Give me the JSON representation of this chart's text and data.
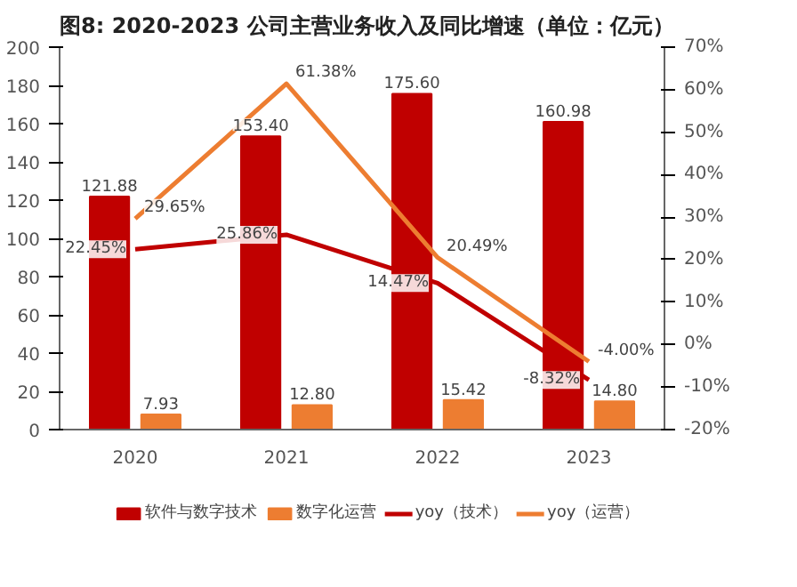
{
  "chart_data": {
    "type": "bar",
    "title": "图8:  2020-2023 公司主营业务收入及同比增速（单位：亿元）",
    "categories": [
      "2020",
      "2021",
      "2022",
      "2023"
    ],
    "series": [
      {
        "name": "软件与数字技术",
        "color": "#c00000",
        "values": [
          121.88,
          153.4,
          175.6,
          160.98
        ],
        "value_labels": [
          "121.88",
          "153.40",
          "175.60",
          "160.98"
        ]
      },
      {
        "name": "数字化运营",
        "color": "#ed7d31",
        "values": [
          7.93,
          12.8,
          15.42,
          14.8
        ],
        "value_labels": [
          "7.93",
          "12.80",
          "15.42",
          "14.80"
        ]
      },
      {
        "name": "yoy（技术）",
        "type": "line",
        "axis": "y2",
        "color": "#c00000",
        "values": [
          22.45,
          25.86,
          14.47,
          -8.32
        ],
        "value_labels": [
          "22.45%",
          "25.86%",
          "14.47%",
          "-8.32%"
        ]
      },
      {
        "name": "yoy（运营）",
        "type": "line",
        "axis": "y2",
        "color": "#ed7d31",
        "values": [
          29.65,
          61.38,
          20.49,
          -4.0
        ],
        "value_labels": [
          "29.65%",
          "61.38%",
          "20.49%",
          "-4.00%"
        ]
      }
    ],
    "ylim": [
      0,
      200
    ],
    "yticks": [
      0,
      20,
      40,
      60,
      80,
      100,
      120,
      140,
      160,
      180,
      200
    ],
    "y2lim": [
      -20,
      70
    ],
    "y2ticks": [
      {
        "value": -20,
        "label": "-20%"
      },
      {
        "value": -10,
        "label": "-10%"
      },
      {
        "value": 0,
        "label": "0%"
      },
      {
        "value": 10,
        "label": "10%"
      },
      {
        "value": 20,
        "label": "20%"
      },
      {
        "value": 30,
        "label": "30%"
      },
      {
        "value": 40,
        "label": "40%"
      },
      {
        "value": 50,
        "label": "50%"
      },
      {
        "value": 60,
        "label": "60%"
      },
      {
        "value": 70,
        "label": "70%"
      }
    ],
    "grid": false,
    "legend": "bottom"
  }
}
